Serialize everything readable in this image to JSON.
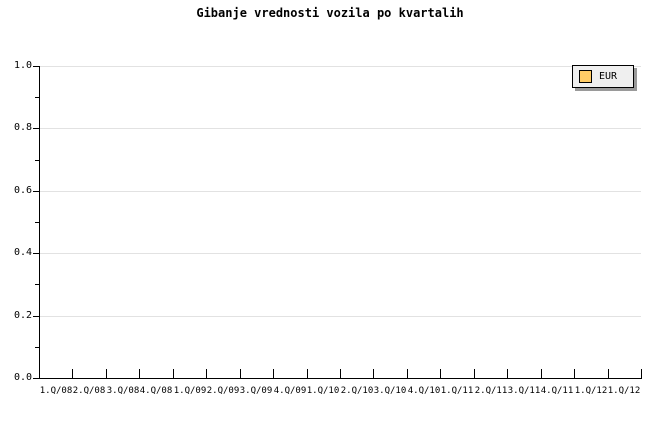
{
  "chart_data": {
    "type": "line",
    "title": "Gibanje vrednosti vozila po kvartalih",
    "categories": [
      "1.Q/08",
      "2.Q/08",
      "3.Q/08",
      "4.Q/08",
      "1.Q/09",
      "2.Q/09",
      "3.Q/09",
      "4.Q/09",
      "1.Q/10",
      "2.Q/10",
      "3.Q/10",
      "4.Q/10",
      "1.Q/11",
      "2.Q/11",
      "3.Q/11",
      "4.Q/11",
      "1.Q/12",
      "1.Q/12"
    ],
    "series": [
      {
        "name": "EUR",
        "color": "#FFCC66",
        "values": []
      }
    ],
    "xlabel": "",
    "ylabel": "",
    "ylim": [
      0.0,
      1.0
    ],
    "y_ticks": [
      {
        "label": "0.0",
        "value": 0.0
      },
      {
        "label": "0.2",
        "value": 0.2
      },
      {
        "label": "0.4",
        "value": 0.4
      },
      {
        "label": "0.6",
        "value": 0.6
      },
      {
        "label": "0.8",
        "value": 0.8
      },
      {
        "label": "1.0",
        "value": 1.0
      }
    ],
    "y_minor_ticks": [
      0.1,
      0.3,
      0.5,
      0.7,
      0.9
    ],
    "grid": "horizontal-major",
    "legend": {
      "position": "top-right",
      "entries": [
        {
          "label": "EUR",
          "color": "#FFCC66"
        }
      ]
    },
    "plot_empty": true
  },
  "colors": {
    "background": "#FFFFFF",
    "axis": "#000000",
    "gridline": "#E2E2E2",
    "text": "#000000",
    "legend_bg": "#EFEFEF",
    "legend_border": "#000000",
    "legend_shadow": "#9A9A9A"
  }
}
